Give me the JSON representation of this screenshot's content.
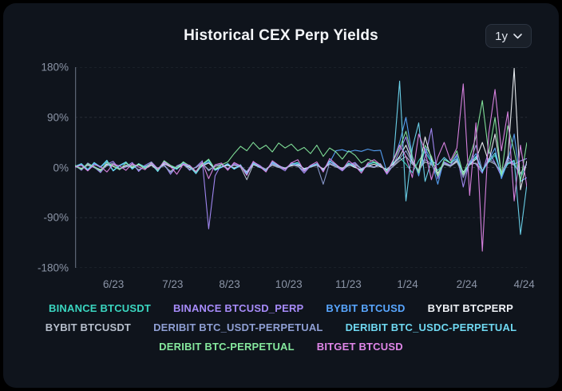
{
  "header": {
    "title": "Historical CEX Perp Yields",
    "range_selector": {
      "value": "1y"
    }
  },
  "chart_data": {
    "type": "line",
    "title": "Historical CEX Perp Yields",
    "xlabel": "",
    "ylabel": "",
    "ylim": [
      -180,
      180
    ],
    "grid": true,
    "legend_position": "bottom",
    "y_ticks": [
      "180%",
      "90%",
      "0%",
      "-90%",
      "-180%"
    ],
    "y_tick_values": [
      180,
      90,
      0,
      -90,
      -180
    ],
    "x_ticks": [
      "6/23",
      "7/23",
      "8/23",
      "10/23",
      "11/23",
      "1/24",
      "2/24",
      "4/24"
    ],
    "x_tick_positions": [
      0.085,
      0.216,
      0.342,
      0.473,
      0.605,
      0.736,
      0.867,
      0.994
    ],
    "colors": {
      "axis_label": "#8b94a6",
      "gridline": "#262b34",
      "zero_line": "#333a46",
      "spine": "#5a6372"
    },
    "series": [
      {
        "name": "BINANCE BTCUSDT",
        "color": "#3ad6c0",
        "legend_row": 1,
        "values": [
          2,
          6,
          -3,
          8,
          1,
          12,
          -5,
          4,
          9,
          -2,
          6,
          0,
          7,
          -6,
          11,
          3,
          -2,
          9,
          2,
          -10,
          5,
          13,
          -4,
          1,
          6,
          -2,
          4,
          -12,
          7,
          1,
          -5,
          9,
          3,
          -1,
          5,
          8,
          -3,
          2,
          6,
          -5,
          11,
          4,
          -2,
          7,
          1,
          -6,
          5,
          9,
          2,
          -4,
          8,
          18,
          6,
          -9,
          12,
          28,
          9,
          -5,
          6,
          2,
          14,
          -8,
          5,
          18,
          -6,
          10,
          22,
          -12,
          6,
          11,
          -20,
          8
        ]
      },
      {
        "name": "BINANCE BTCUSD_PERP",
        "color": "#a78bfa",
        "legend_row": 1,
        "values": [
          4,
          -5,
          8,
          1,
          -9,
          6,
          11,
          -3,
          2,
          9,
          -7,
          4,
          10,
          -2,
          6,
          -12,
          3,
          8,
          -5,
          1,
          12,
          -110,
          -15,
          6,
          -3,
          7,
          2,
          -8,
          10,
          4,
          -5,
          8,
          1,
          -6,
          9,
          3,
          -10,
          3,
          7,
          -4,
          12,
          2,
          -6,
          5,
          9,
          -3,
          4,
          1,
          7,
          -12,
          4,
          30,
          55,
          12,
          -8,
          18,
          70,
          -20,
          10,
          4,
          24,
          -35,
          12,
          6,
          -10,
          30,
          8,
          -16,
          20,
          6,
          12,
          16
        ]
      },
      {
        "name": "BYBIT BTCUSD",
        "color": "#58a6ff",
        "legend_row": 1,
        "values": [
          1,
          5,
          -4,
          7,
          0,
          10,
          -6,
          3,
          8,
          -2,
          5,
          -1,
          6,
          -7,
          9,
          2,
          -3,
          7,
          1,
          -9,
          4,
          10,
          -5,
          0,
          5,
          -3,
          3,
          -10,
          6,
          0,
          -4,
          7,
          2,
          -2,
          4,
          6,
          -2,
          1,
          5,
          -4,
          9,
          30,
          32,
          28,
          31,
          29,
          33,
          30,
          31,
          -8,
          10,
          45,
          90,
          20,
          -15,
          35,
          12,
          -30,
          15,
          8,
          20,
          -12,
          8,
          25,
          -8,
          14,
          35,
          -20,
          10,
          60,
          -25,
          -18
        ]
      },
      {
        "name": "BYBIT BTCPERP",
        "color": "#f0f3f8",
        "legend_row": 1,
        "values": [
          3,
          -2,
          5,
          1,
          -4,
          6,
          2,
          -3,
          4,
          0,
          5,
          -2,
          4,
          -5,
          7,
          1,
          -2,
          5,
          0,
          -7,
          3,
          8,
          -3,
          1,
          4,
          -1,
          3,
          -8,
          5,
          1,
          -3,
          6,
          2,
          -1,
          3,
          5,
          -2,
          1,
          4,
          -3,
          7,
          2,
          -1,
          5,
          0,
          -4,
          3,
          6,
          1,
          -3,
          6,
          20,
          40,
          10,
          -6,
          55,
          15,
          -10,
          8,
          3,
          12,
          -8,
          5,
          15,
          45,
          10,
          60,
          -10,
          15,
          178,
          -40,
          12
        ]
      },
      {
        "name": "BYBIT BTCUSDT",
        "color": "#b7bfcc",
        "legend_row": 2,
        "values": [
          2,
          -3,
          4,
          0,
          -5,
          3,
          6,
          -2,
          1,
          4,
          -4,
          2,
          5,
          -1,
          3,
          -7,
          2,
          5,
          -3,
          0,
          7,
          -4,
          2,
          5,
          -2,
          4,
          1,
          -22,
          5,
          2,
          -3,
          4,
          0,
          -3,
          5,
          2,
          -5,
          1,
          4,
          -2,
          6,
          1,
          -3,
          3,
          5,
          -2,
          2,
          0,
          4,
          -6,
          2,
          12,
          20,
          6,
          -4,
          10,
          5,
          -12,
          6,
          2,
          10,
          -14,
          5,
          8,
          -5,
          12,
          6,
          -8,
          10,
          4,
          -10,
          6
        ]
      },
      {
        "name": "DERIBIT BTC_USDT-PERPETUAL",
        "color": "#8f9fd4",
        "legend_row": 2,
        "values": [
          3,
          -4,
          6,
          0,
          -7,
          4,
          8,
          -2,
          1,
          6,
          -5,
          2,
          7,
          -2,
          4,
          -9,
          2,
          6,
          -4,
          0,
          9,
          -6,
          3,
          6,
          -2,
          5,
          1,
          -7,
          8,
          2,
          -4,
          6,
          1,
          -3,
          6,
          3,
          -7,
          2,
          5,
          -30,
          8,
          2,
          -4,
          4,
          7,
          -2,
          3,
          1,
          5,
          -9,
          3,
          16,
          30,
          8,
          -5,
          14,
          7,
          -16,
          8,
          3,
          14,
          -18,
          7,
          40,
          -6,
          16,
          8,
          -10,
          14,
          5,
          -12,
          8
        ]
      },
      {
        "name": "DERIBIT BTC_USDC-PERPETUAL",
        "color": "#6fd9f2",
        "legend_row": 2,
        "values": [
          2,
          7,
          -5,
          9,
          1,
          13,
          -6,
          4,
          10,
          -3,
          7,
          1,
          8,
          -7,
          12,
          3,
          -3,
          10,
          2,
          -11,
          5,
          14,
          -5,
          1,
          7,
          -3,
          5,
          -13,
          8,
          1,
          -6,
          10,
          3,
          -2,
          6,
          9,
          -4,
          2,
          7,
          -6,
          12,
          5,
          -3,
          8,
          2,
          -7,
          6,
          10,
          3,
          -5,
          9,
          155,
          -60,
          35,
          80,
          -25,
          12,
          5,
          18,
          8,
          16,
          -10,
          6,
          20,
          -7,
          12,
          26,
          -14,
          7,
          13,
          -120,
          -30
        ]
      },
      {
        "name": "DERIBIT BTC-PERPETUAL",
        "color": "#85e89d",
        "legend_row": 3,
        "values": [
          4,
          -3,
          7,
          2,
          -6,
          9,
          3,
          -4,
          8,
          1,
          6,
          -2,
          9,
          -5,
          12,
          4,
          -1,
          10,
          3,
          -8,
          6,
          15,
          -3,
          5,
          10,
          25,
          38,
          30,
          45,
          33,
          40,
          28,
          44,
          35,
          42,
          30,
          36,
          25,
          40,
          20,
          35,
          28,
          15,
          30,
          22,
          8,
          15,
          10,
          6,
          -8,
          12,
          35,
          65,
          18,
          -10,
          40,
          20,
          -15,
          14,
          8,
          30,
          -12,
          18,
          55,
          120,
          25,
          90,
          -15,
          75,
          30,
          -25,
          45
        ]
      },
      {
        "name": "BITGET BTCUSD",
        "color": "#e086e8",
        "legend_row": 3,
        "values": [
          1,
          4,
          -6,
          5,
          2,
          -8,
          6,
          3,
          -5,
          7,
          1,
          -4,
          8,
          -3,
          10,
          2,
          -12,
          6,
          4,
          -7,
          9,
          -20,
          5,
          8,
          -5,
          9,
          3,
          -14,
          11,
          2,
          -8,
          12,
          4,
          -3,
          8,
          14,
          -6,
          4,
          10,
          -8,
          16,
          6,
          -4,
          12,
          3,
          -10,
          8,
          14,
          5,
          -10,
          14,
          40,
          20,
          -18,
          60,
          30,
          -22,
          18,
          45,
          12,
          35,
          150,
          -50,
          80,
          -150,
          60,
          140,
          30,
          100,
          -60,
          40,
          -35
        ]
      }
    ]
  }
}
